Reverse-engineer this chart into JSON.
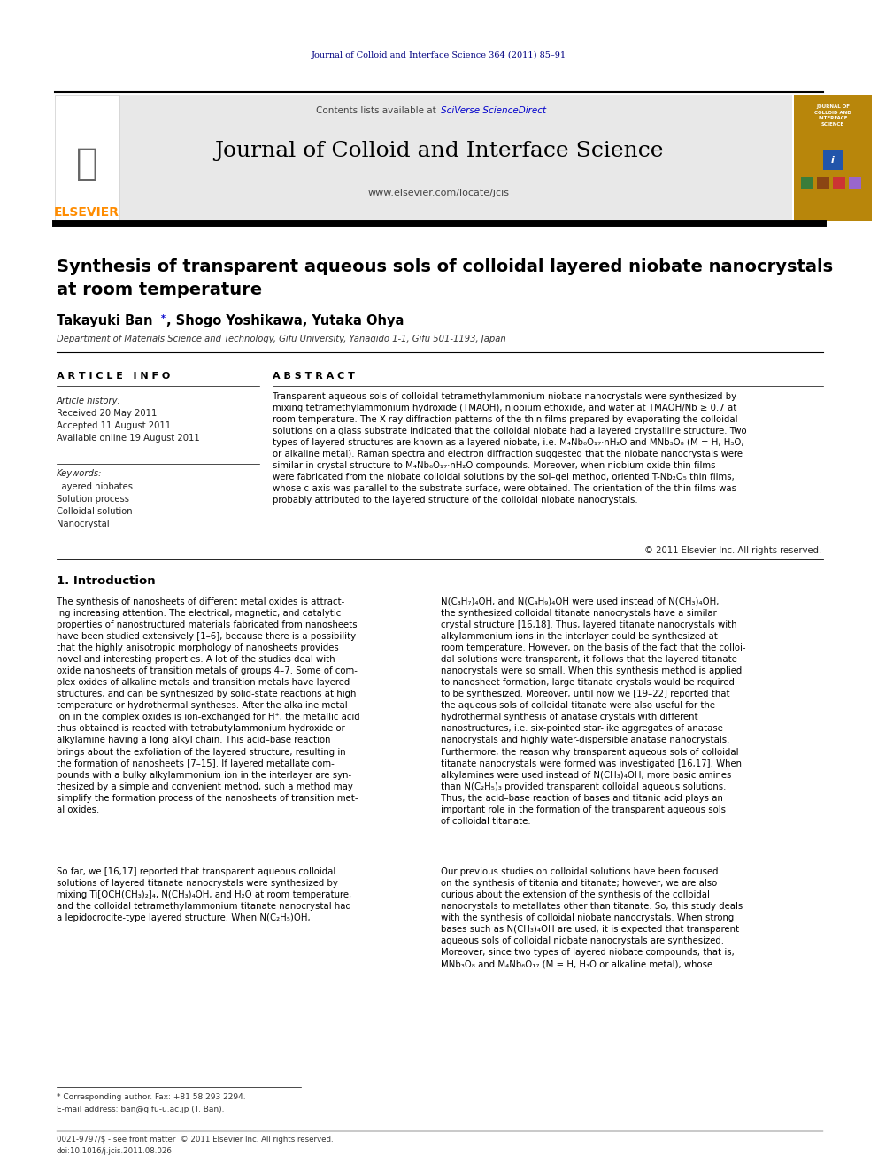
{
  "journal_ref": "Journal of Colloid and Interface Science 364 (2011) 85–91",
  "journal_name": "Journal of Colloid and Interface Science",
  "journal_url": "www.elsevier.com/locate/jcis",
  "elsevier_text": "ELSEVIER",
  "contents_text": "Contents lists available at ",
  "sciverse_text": "SciVerse ScienceDirect",
  "paper_title_line1": "Synthesis of transparent aqueous sols of colloidal layered niobate nanocrystals",
  "paper_title_line2": "at room temperature",
  "author_part1": "Takayuki Ban",
  "author_part2": ", Shogo Yoshikawa, Yutaka Ohya",
  "affiliation": "Department of Materials Science and Technology, Gifu University, Yanagido 1-1, Gifu 501-1193, Japan",
  "article_info_header": "A R T I C L E   I N F O",
  "abstract_header": "A B S T R A C T",
  "article_history_label": "Article history:",
  "received": "Received 20 May 2011",
  "accepted": "Accepted 11 August 2011",
  "available": "Available online 19 August 2011",
  "keywords_label": "Keywords:",
  "keyword1": "Layered niobates",
  "keyword2": "Solution process",
  "keyword3": "Colloidal solution",
  "keyword4": "Nanocrystal",
  "abstract_text": "Transparent aqueous sols of colloidal tetramethylammonium niobate nanocrystals were synthesized by\nmixing tetramethylammonium hydroxide (TMAOH), niobium ethoxide, and water at TMAOH/Nb ≥ 0.7 at\nroom temperature. The X-ray diffraction patterns of the thin films prepared by evaporating the colloidal\nsolutions on a glass substrate indicated that the colloidal niobate had a layered crystalline structure. Two\ntypes of layered structures are known as a layered niobate, i.e. M₄Nb₆O₁₇·nH₂O and MNb₃O₈ (M = H, H₃O,\nor alkaline metal). Raman spectra and electron diffraction suggested that the niobate nanocrystals were\nsimilar in crystal structure to M₄Nb₆O₁₇·nH₂O compounds. Moreover, when niobium oxide thin films\nwere fabricated from the niobate colloidal solutions by the sol–gel method, oriented T-Nb₂O₅ thin films,\nwhose c-axis was parallel to the substrate surface, were obtained. The orientation of the thin films was\nprobably attributed to the layered structure of the colloidal niobate nanocrystals.",
  "copyright": "© 2011 Elsevier Inc. All rights reserved.",
  "issn": "0021-9797/$ - see front matter  © 2011 Elsevier Inc. All rights reserved.",
  "doi": "doi:10.1016/j.jcis.2011.08.026",
  "intro_header": "1. Introduction",
  "intro_col1_p1": "The synthesis of nanosheets of different metal oxides is attract-\ning increasing attention. The electrical, magnetic, and catalytic\nproperties of nanostructured materials fabricated from nanosheets\nhave been studied extensively [1–6], because there is a possibility\nthat the highly anisotropic morphology of nanosheets provides\nnovel and interesting properties. A lot of the studies deal with\noxide nanosheets of transition metals of groups 4–7. Some of com-\nplex oxides of alkaline metals and transition metals have layered\nstructures, and can be synthesized by solid-state reactions at high\ntemperature or hydrothermal syntheses. After the alkaline metal\nion in the complex oxides is ion-exchanged for H⁺, the metallic acid\nthus obtained is reacted with tetrabutylammonium hydroxide or\nalkylamine having a long alkyl chain. This acid–base reaction\nbrings about the exfoliation of the layered structure, resulting in\nthe formation of nanosheets [7–15]. If layered metallate com-\npounds with a bulky alkylammonium ion in the interlayer are syn-\nthesized by a simple and convenient method, such a method may\nsimplify the formation process of the nanosheets of transition met-\nal oxides.",
  "intro_col1_p2": "So far, we [16,17] reported that transparent aqueous colloidal\nsolutions of layered titanate nanocrystals were synthesized by\nmixing Ti[OCH(CH₃)₂]₄, N(CH₃)₄OH, and H₂O at room temperature,\nand the colloidal tetramethylammonium titanate nanocrystal had\na lepidocrocite-type layered structure. When N(C₂H₅)OH,",
  "footnote_star": "* Corresponding author. Fax: +81 58 293 2294.",
  "footnote_email": "E-mail address: ban@gifu-u.ac.jp (T. Ban).",
  "intro_col2_p1": "N(C₃H₇)₄OH, and N(C₄H₉)₄OH were used instead of N(CH₃)₄OH,\nthe synthesized colloidal titanate nanocrystals have a similar\ncrystal structure [16,18]. Thus, layered titanate nanocrystals with\nalkylammonium ions in the interlayer could be synthesized at\nroom temperature. However, on the basis of the fact that the colloi-\ndal solutions were transparent, it follows that the layered titanate\nnanocrystals were so small. When this synthesis method is applied\nto nanosheet formation, large titanate crystals would be required\nto be synthesized. Moreover, until now we [19–22] reported that\nthe aqueous sols of colloidal titanate were also useful for the\nhydrothermal synthesis of anatase crystals with different\nnanostructures, i.e. six-pointed star-like aggregates of anatase\nnanocrystals and highly water-dispersible anatase nanocrystals.\nFurthermore, the reason why transparent aqueous sols of colloidal\ntitanate nanocrystals were formed was investigated [16,17]. When\nalkylamines were used instead of N(CH₃)₄OH, more basic amines\nthan N(C₂H₅)₃ provided transparent colloidal aqueous solutions.\nThus, the acid–base reaction of bases and titanic acid plays an\nimportant role in the formation of the transparent aqueous sols\nof colloidal titanate.",
  "intro_col2_p2": "Our previous studies on colloidal solutions have been focused\non the synthesis of titania and titanate; however, we are also\ncurious about the extension of the synthesis of the colloidal\nnanocrystals to metallates other than titanate. So, this study deals\nwith the synthesis of colloidal niobate nanocrystals. When strong\nbases such as N(CH₃)₄OH are used, it is expected that transparent\naqueous sols of colloidal niobate nanocrystals are synthesized.\nMoreover, since two types of layered niobate compounds, that is,\nMNb₃O₈ and M₄Nb₆O₁₇ (M = H, H₃O or alkaline metal), whose",
  "header_bg_color": "#e8e8e8",
  "elsevier_color": "#FF8C00",
  "sciverse_color": "#0000CC",
  "dark_navy": "#000080",
  "cover_bg": "#B8860B",
  "cover_title": "JOURNAL OF\nCOLLOID AND\nINTERFACE\nSCIENCE",
  "cover_sq_colors": [
    "#3a7d3a",
    "#8B4513",
    "#cc3333",
    "#9966cc"
  ]
}
